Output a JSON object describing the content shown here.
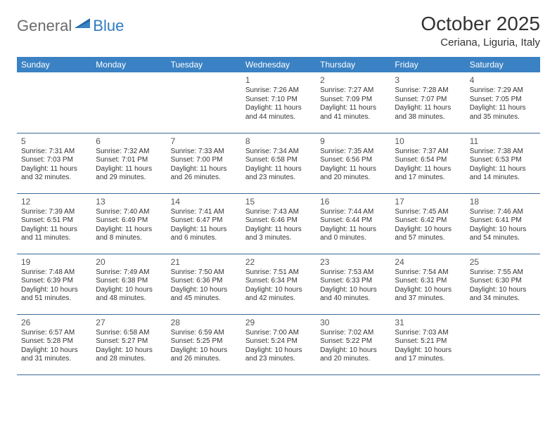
{
  "logo": {
    "general": "General",
    "blue": "Blue"
  },
  "title": "October 2025",
  "location": "Ceriana, Liguria, Italy",
  "colors": {
    "header_bg": "#3b82c4",
    "header_text": "#ffffff",
    "rule": "#3b6a97",
    "logo_gray": "#6b6b6b",
    "logo_blue": "#2e7cc0"
  },
  "day_headers": [
    "Sunday",
    "Monday",
    "Tuesday",
    "Wednesday",
    "Thursday",
    "Friday",
    "Saturday"
  ],
  "weeks": [
    [
      null,
      null,
      null,
      {
        "n": "1",
        "sr": "7:26 AM",
        "ss": "7:10 PM",
        "dl": "11 hours and 44 minutes."
      },
      {
        "n": "2",
        "sr": "7:27 AM",
        "ss": "7:09 PM",
        "dl": "11 hours and 41 minutes."
      },
      {
        "n": "3",
        "sr": "7:28 AM",
        "ss": "7:07 PM",
        "dl": "11 hours and 38 minutes."
      },
      {
        "n": "4",
        "sr": "7:29 AM",
        "ss": "7:05 PM",
        "dl": "11 hours and 35 minutes."
      }
    ],
    [
      {
        "n": "5",
        "sr": "7:31 AM",
        "ss": "7:03 PM",
        "dl": "11 hours and 32 minutes."
      },
      {
        "n": "6",
        "sr": "7:32 AM",
        "ss": "7:01 PM",
        "dl": "11 hours and 29 minutes."
      },
      {
        "n": "7",
        "sr": "7:33 AM",
        "ss": "7:00 PM",
        "dl": "11 hours and 26 minutes."
      },
      {
        "n": "8",
        "sr": "7:34 AM",
        "ss": "6:58 PM",
        "dl": "11 hours and 23 minutes."
      },
      {
        "n": "9",
        "sr": "7:35 AM",
        "ss": "6:56 PM",
        "dl": "11 hours and 20 minutes."
      },
      {
        "n": "10",
        "sr": "7:37 AM",
        "ss": "6:54 PM",
        "dl": "11 hours and 17 minutes."
      },
      {
        "n": "11",
        "sr": "7:38 AM",
        "ss": "6:53 PM",
        "dl": "11 hours and 14 minutes."
      }
    ],
    [
      {
        "n": "12",
        "sr": "7:39 AM",
        "ss": "6:51 PM",
        "dl": "11 hours and 11 minutes."
      },
      {
        "n": "13",
        "sr": "7:40 AM",
        "ss": "6:49 PM",
        "dl": "11 hours and 8 minutes."
      },
      {
        "n": "14",
        "sr": "7:41 AM",
        "ss": "6:47 PM",
        "dl": "11 hours and 6 minutes."
      },
      {
        "n": "15",
        "sr": "7:43 AM",
        "ss": "6:46 PM",
        "dl": "11 hours and 3 minutes."
      },
      {
        "n": "16",
        "sr": "7:44 AM",
        "ss": "6:44 PM",
        "dl": "11 hours and 0 minutes."
      },
      {
        "n": "17",
        "sr": "7:45 AM",
        "ss": "6:42 PM",
        "dl": "10 hours and 57 minutes."
      },
      {
        "n": "18",
        "sr": "7:46 AM",
        "ss": "6:41 PM",
        "dl": "10 hours and 54 minutes."
      }
    ],
    [
      {
        "n": "19",
        "sr": "7:48 AM",
        "ss": "6:39 PM",
        "dl": "10 hours and 51 minutes."
      },
      {
        "n": "20",
        "sr": "7:49 AM",
        "ss": "6:38 PM",
        "dl": "10 hours and 48 minutes."
      },
      {
        "n": "21",
        "sr": "7:50 AM",
        "ss": "6:36 PM",
        "dl": "10 hours and 45 minutes."
      },
      {
        "n": "22",
        "sr": "7:51 AM",
        "ss": "6:34 PM",
        "dl": "10 hours and 42 minutes."
      },
      {
        "n": "23",
        "sr": "7:53 AM",
        "ss": "6:33 PM",
        "dl": "10 hours and 40 minutes."
      },
      {
        "n": "24",
        "sr": "7:54 AM",
        "ss": "6:31 PM",
        "dl": "10 hours and 37 minutes."
      },
      {
        "n": "25",
        "sr": "7:55 AM",
        "ss": "6:30 PM",
        "dl": "10 hours and 34 minutes."
      }
    ],
    [
      {
        "n": "26",
        "sr": "6:57 AM",
        "ss": "5:28 PM",
        "dl": "10 hours and 31 minutes."
      },
      {
        "n": "27",
        "sr": "6:58 AM",
        "ss": "5:27 PM",
        "dl": "10 hours and 28 minutes."
      },
      {
        "n": "28",
        "sr": "6:59 AM",
        "ss": "5:25 PM",
        "dl": "10 hours and 26 minutes."
      },
      {
        "n": "29",
        "sr": "7:00 AM",
        "ss": "5:24 PM",
        "dl": "10 hours and 23 minutes."
      },
      {
        "n": "30",
        "sr": "7:02 AM",
        "ss": "5:22 PM",
        "dl": "10 hours and 20 minutes."
      },
      {
        "n": "31",
        "sr": "7:03 AM",
        "ss": "5:21 PM",
        "dl": "10 hours and 17 minutes."
      },
      null
    ]
  ],
  "labels": {
    "sunrise": "Sunrise:",
    "sunset": "Sunset:",
    "daylight": "Daylight:"
  }
}
